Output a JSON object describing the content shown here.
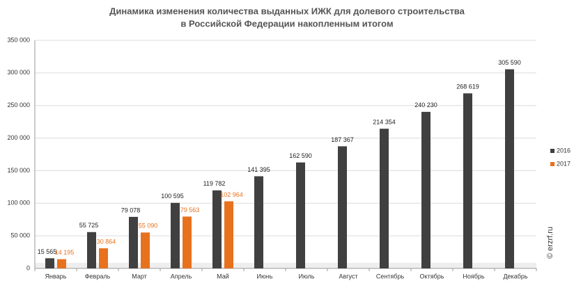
{
  "chart_data": {
    "type": "bar",
    "title": [
      "Динамика изменения количества выданных ИЖК для долевого строительства",
      "в Российской Федерации накопленным итогом"
    ],
    "categories": [
      "Январь",
      "Февраль",
      "Март",
      "Апрель",
      "Май",
      "Июнь",
      "Июль",
      "Август",
      "Сентябрь",
      "Октябрь",
      "Ноябрь",
      "Декабрь"
    ],
    "series": [
      {
        "name": "2016",
        "color": "#404040",
        "values": [
          15565,
          55725,
          79078,
          100595,
          119782,
          141395,
          162590,
          187367,
          214354,
          240230,
          268619,
          305590
        ],
        "value_labels": [
          "15 565",
          "55 725",
          "79 078",
          "100 595",
          "119 782",
          "141 395",
          "162 590",
          "187 367",
          "214 354",
          "240 230",
          "268 619",
          "305 590"
        ]
      },
      {
        "name": "2017",
        "color": "#e8711e",
        "values": [
          14195,
          30864,
          55090,
          79563,
          102964,
          null,
          null,
          null,
          null,
          null,
          null,
          null
        ],
        "value_labels": [
          "14 195",
          "30 864",
          "55 090",
          "79 563",
          "102 964",
          null,
          null,
          null,
          null,
          null,
          null,
          null
        ]
      }
    ],
    "ylim": [
      0,
      350000
    ],
    "yticks": [
      0,
      {
        "value": 50000,
        "label": "50 000"
      },
      {
        "value": 100000,
        "label": "100 000"
      },
      {
        "value": 150000,
        "label": "150 000"
      },
      {
        "value": 200000,
        "label": "200 000"
      },
      {
        "value": 250000,
        "label": "250 000"
      },
      {
        "value": 300000,
        "label": "300 000"
      },
      {
        "value": 350000,
        "label": "350 000"
      }
    ],
    "grid": true,
    "legend": "right",
    "watermark": "© erzrf.ru"
  }
}
